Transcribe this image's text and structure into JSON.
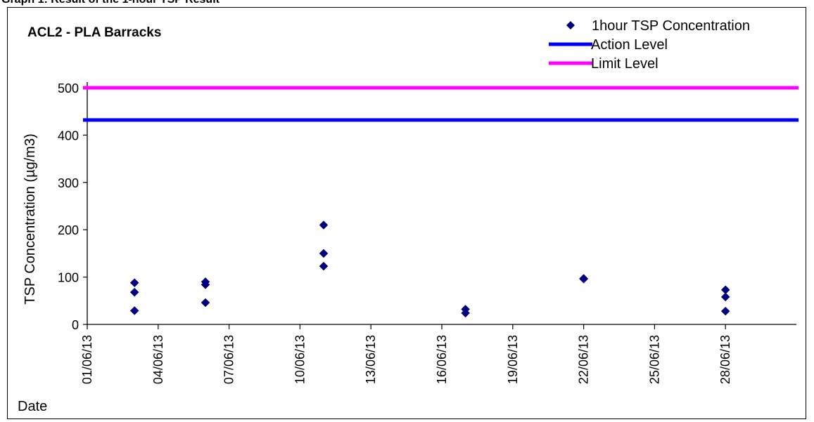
{
  "page": {
    "heading": "Graph 1: Result of the 1-hour TSP Result"
  },
  "chart_data": {
    "type": "scatter",
    "title": "ACL2 - PLA Barracks",
    "xlabel": "Date",
    "ylabel": "TSP Concentration (µg/m3)",
    "ylim": [
      0,
      500
    ],
    "yticks": [
      0,
      100,
      200,
      300,
      400,
      500
    ],
    "xlim": [
      "2013-06-01",
      "2013-07-01"
    ],
    "xticks": [
      "01/06/13",
      "04/06/13",
      "07/06/13",
      "10/06/13",
      "13/06/13",
      "16/06/13",
      "19/06/13",
      "22/06/13",
      "25/06/13",
      "28/06/13"
    ],
    "grid": false,
    "legend_position": "top-right",
    "series": [
      {
        "name": "1hour TSP Concentration",
        "type": "scatter",
        "marker": "diamond",
        "color": "#000080",
        "points": [
          {
            "x": "2013-06-03",
            "y": 88
          },
          {
            "x": "2013-06-03",
            "y": 68
          },
          {
            "x": "2013-06-03",
            "y": 29
          },
          {
            "x": "2013-06-06",
            "y": 90
          },
          {
            "x": "2013-06-06",
            "y": 84
          },
          {
            "x": "2013-06-06",
            "y": 46
          },
          {
            "x": "2013-06-11",
            "y": 210
          },
          {
            "x": "2013-06-11",
            "y": 150
          },
          {
            "x": "2013-06-11",
            "y": 123
          },
          {
            "x": "2013-06-17",
            "y": 32
          },
          {
            "x": "2013-06-17",
            "y": 24
          },
          {
            "x": "2013-06-22",
            "y": 97
          },
          {
            "x": "2013-06-22",
            "y": 96
          },
          {
            "x": "2013-06-28",
            "y": 73
          },
          {
            "x": "2013-06-28",
            "y": 58
          },
          {
            "x": "2013-06-28",
            "y": 28
          }
        ]
      },
      {
        "name": "Action Level",
        "type": "line",
        "color": "#0000FF",
        "value": 432
      },
      {
        "name": "Limit Level",
        "type": "line",
        "color": "#FF00FF",
        "value": 500
      }
    ]
  }
}
